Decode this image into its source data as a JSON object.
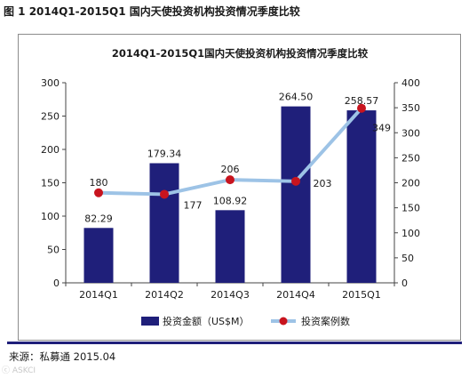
{
  "figure_title": "图 1 2014Q1-2015Q1 国内天使投资机构投资情况季度比较",
  "source_text": "来源：私募通 2015.04",
  "watermark_text": "ⓒ ASKCI",
  "colors": {
    "bar": "#1f1f7a",
    "line": "#9dc3e6",
    "marker": "#c8141e",
    "axis": "#444444",
    "frame": "#8c8c8c"
  },
  "chart_data": {
    "type": "bar",
    "title": "2014Q1-2015Q1国内天使投资机构投资情况季度比较",
    "categories": [
      "2014Q1",
      "2014Q2",
      "2014Q3",
      "2014Q4",
      "2015Q1"
    ],
    "series": [
      {
        "name": "投资金额（US$M）",
        "type": "bar",
        "axis": "left",
        "values": [
          82.29,
          179.34,
          108.92,
          264.5,
          258.57
        ],
        "labels": [
          "82.29",
          "179.34",
          "108.92",
          "264.50",
          "258.57"
        ]
      },
      {
        "name": "投资案例数",
        "type": "line",
        "axis": "right",
        "values": [
          180,
          177,
          206,
          203,
          349
        ],
        "labels": [
          "180",
          "177",
          "206",
          "203",
          "349"
        ]
      }
    ],
    "ylim_left": [
      0,
      300
    ],
    "yticks_left": [
      "0",
      "50",
      "100",
      "150",
      "200",
      "250",
      "300"
    ],
    "ylim_right": [
      0,
      400
    ],
    "yticks_right": [
      "0",
      "50",
      "100",
      "150",
      "200",
      "250",
      "300",
      "350",
      "400"
    ],
    "grid": false,
    "legend_position": "bottom"
  }
}
